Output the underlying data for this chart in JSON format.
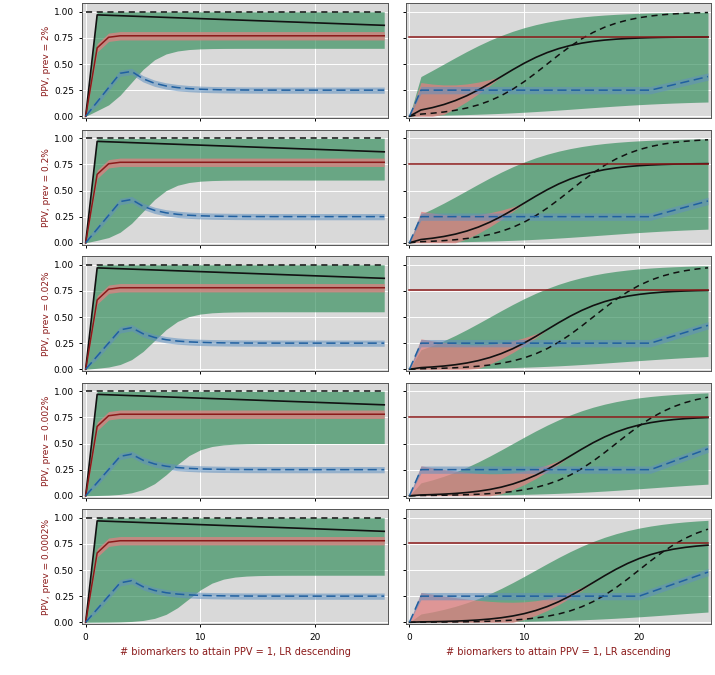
{
  "n_rows": 5,
  "n_cols": 2,
  "x_max": 26,
  "ylim": [
    -0.02,
    1.08
  ],
  "yticks": [
    0.0,
    0.25,
    0.5,
    0.75,
    1.0
  ],
  "xticks": [
    0,
    10,
    20
  ],
  "col_titles": [
    "# biomarkers to attain PPV = 1, LR descending",
    "# biomarkers to attain PPV = 1, LR ascending"
  ],
  "row_labels": [
    "PPV, prev = 2%",
    "PPV, prev = 0.2%",
    "PPV, prev = 0.02%",
    "PPV, prev = 0.002%",
    "PPV, prev = 0.0002%"
  ],
  "bg_color": "#d9d9d9",
  "green_color": "#2e8b57",
  "red_color": "#e08080",
  "black_color": "#111111",
  "red_line_color": "#8b1a1a",
  "blue_line_color": "#2060a0",
  "blue_fill_color": "#6090c0",
  "figsize": [
    7.15,
    6.75
  ],
  "dpi": 100
}
